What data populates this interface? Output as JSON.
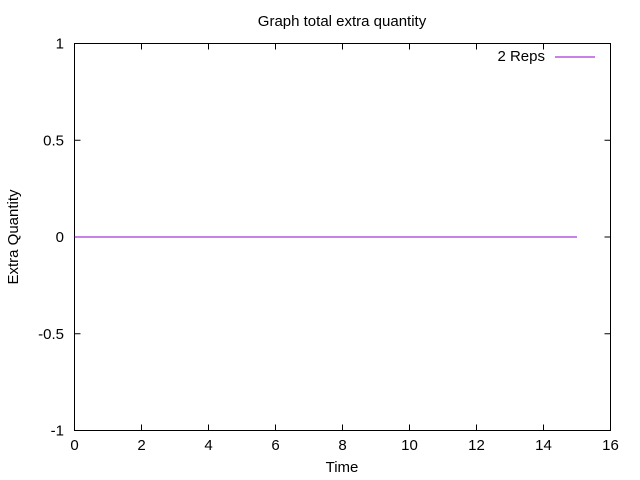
{
  "chart_data": {
    "type": "line",
    "title": "Graph total extra quantity",
    "xlabel": "Time",
    "ylabel": "Extra Quantity",
    "xlim": [
      0,
      16
    ],
    "ylim": [
      -1,
      1
    ],
    "xticks": [
      0,
      2,
      4,
      6,
      8,
      10,
      12,
      14,
      16
    ],
    "yticks": [
      -1,
      -0.5,
      0,
      0.5,
      1
    ],
    "xtick_labels": [
      "0",
      "2",
      "4",
      "6",
      "8",
      "10",
      "12",
      "14",
      "16"
    ],
    "ytick_labels": [
      "-1",
      "-0.5",
      "0",
      "0.5",
      "1"
    ],
    "grid": false,
    "legend_position": "top-right",
    "series": [
      {
        "name": "2 Reps",
        "color": "#9400d3",
        "x": [
          0,
          15
        ],
        "y": [
          0,
          0
        ]
      }
    ]
  }
}
